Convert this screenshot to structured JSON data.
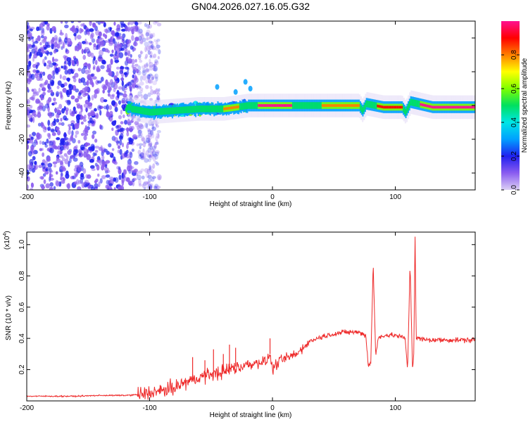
{
  "title": "GN04.2026.027.16.05.G32",
  "colors": {
    "snr_line": "#ee2b2b",
    "frame": "#000000",
    "background": "#ffffff"
  },
  "chart_data": [
    {
      "type": "heatmap",
      "title": "GN04.2026.027.16.05.G32",
      "xlabel": "Height of straight line (km)",
      "ylabel": "Frequency (Hz)",
      "xlim": [
        -200,
        165
      ],
      "ylim": [
        -50,
        50
      ],
      "xticks": [
        -200,
        -100,
        0,
        100
      ],
      "xtick_labels": [
        "-200",
        "-100",
        "0",
        "100"
      ],
      "yticks": [
        -40,
        -20,
        0,
        20,
        40
      ],
      "ytick_labels": [
        "-40",
        "-20",
        "0",
        "20",
        "40"
      ],
      "colorbar": {
        "label": "Normalized spectral amplitude",
        "range": [
          0,
          1
        ],
        "ticks": [
          0.0,
          0.2,
          0.4,
          0.6,
          0.8
        ],
        "tick_labels": [
          "0.0",
          "0.2",
          "0.4",
          "0.6",
          "0.8"
        ],
        "colormap": [
          "#dcd0f5",
          "#8a5cf0",
          "#2020f0",
          "#00a0ff",
          "#00e6e6",
          "#00e060",
          "#80ff00",
          "#ffff00",
          "#ff8000",
          "#ff0000",
          "#ff1090"
        ]
      },
      "noise_region": {
        "x_range": [
          -200,
          -92
        ],
        "amplitude": 0.15
      },
      "transition_region": {
        "x_range": [
          -118,
          -20
        ],
        "amplitude": 0.55
      },
      "ridge": [
        {
          "x": -115,
          "f": -2
        },
        {
          "x": -100,
          "f": -4
        },
        {
          "x": -80,
          "f": -3
        },
        {
          "x": -60,
          "f": -2
        },
        {
          "x": -40,
          "f": -2
        },
        {
          "x": -20,
          "f": 0
        },
        {
          "x": 0,
          "f": 0
        },
        {
          "x": 20,
          "f": 0
        },
        {
          "x": 40,
          "f": 0
        },
        {
          "x": 60,
          "f": 0
        },
        {
          "x": 70,
          "f": 0
        },
        {
          "x": 73,
          "f": -3
        },
        {
          "x": 76,
          "f": 1
        },
        {
          "x": 90,
          "f": -1
        },
        {
          "x": 105,
          "f": -1
        },
        {
          "x": 108,
          "f": -4
        },
        {
          "x": 112,
          "f": 2
        },
        {
          "x": 130,
          "f": -1
        },
        {
          "x": 165,
          "f": -1
        }
      ],
      "peak_segments": [
        {
          "x_range": [
            -12,
            15
          ],
          "amplitude": 0.95
        },
        {
          "x_range": [
            85,
            105
          ],
          "amplitude": 0.9
        },
        {
          "x_range": [
            120,
            165
          ],
          "amplitude": 0.95
        },
        {
          "x_range": [
            -40,
            -28
          ],
          "amplitude": 0.75
        },
        {
          "x_range": [
            40,
            70
          ],
          "amplitude": 0.8
        }
      ]
    },
    {
      "type": "line",
      "xlabel": "Height of straight line (km)",
      "ylabel": "SNR (10 * v/v)",
      "y_multiplier": "(x10",
      "y_multiplier_exp": "4",
      "y_multiplier_close": ")",
      "xlim": [
        -200,
        165
      ],
      "ylim": [
        0,
        1.08
      ],
      "xticks": [
        -200,
        -100,
        0,
        100
      ],
      "xtick_labels": [
        "-200",
        "-100",
        "0",
        "100"
      ],
      "yticks": [
        0.2,
        0.4,
        0.6,
        0.8,
        1.0
      ],
      "ytick_labels": [
        "0.2",
        "0.4",
        "0.6",
        "0.8",
        "1.0"
      ],
      "series": [
        {
          "name": "SNR",
          "color": "#ee2b2b",
          "x": [
            -200,
            -180,
            -160,
            -140,
            -120,
            -110,
            -100,
            -90,
            -80,
            -75,
            -70,
            -65,
            -60,
            -55,
            -50,
            -45,
            -40,
            -35,
            -30,
            -25,
            -20,
            -15,
            -10,
            -5,
            -2,
            0,
            5,
            10,
            20,
            30,
            40,
            50,
            60,
            70,
            76,
            78,
            80,
            82,
            84,
            86,
            90,
            100,
            108,
            110,
            112,
            114,
            115,
            116,
            117,
            118,
            125,
            140,
            150,
            165
          ],
          "y": [
            0.03,
            0.03,
            0.03,
            0.035,
            0.035,
            0.04,
            0.05,
            0.06,
            0.08,
            0.1,
            0.12,
            0.13,
            0.15,
            0.16,
            0.17,
            0.18,
            0.19,
            0.2,
            0.22,
            0.22,
            0.23,
            0.24,
            0.25,
            0.25,
            0.3,
            0.2,
            0.25,
            0.27,
            0.3,
            0.38,
            0.41,
            0.43,
            0.44,
            0.44,
            0.42,
            0.22,
            0.25,
            0.88,
            0.28,
            0.4,
            0.42,
            0.42,
            0.4,
            0.2,
            0.88,
            0.2,
            0.3,
            1.08,
            0.4,
            0.4,
            0.39,
            0.39,
            0.39,
            0.39
          ]
        }
      ],
      "spikes": [
        {
          "x": -65,
          "y": 0.28
        },
        {
          "x": -55,
          "y": 0.26
        },
        {
          "x": -48,
          "y": 0.33
        },
        {
          "x": -40,
          "y": 0.3
        },
        {
          "x": -35,
          "y": 0.36
        },
        {
          "x": -30,
          "y": 0.34
        },
        {
          "x": -20,
          "y": 0.26
        },
        {
          "x": -2,
          "y": 0.4
        },
        {
          "x": 82,
          "y": 0.88
        },
        {
          "x": 112,
          "y": 0.88
        },
        {
          "x": 116,
          "y": 1.08
        }
      ]
    }
  ]
}
